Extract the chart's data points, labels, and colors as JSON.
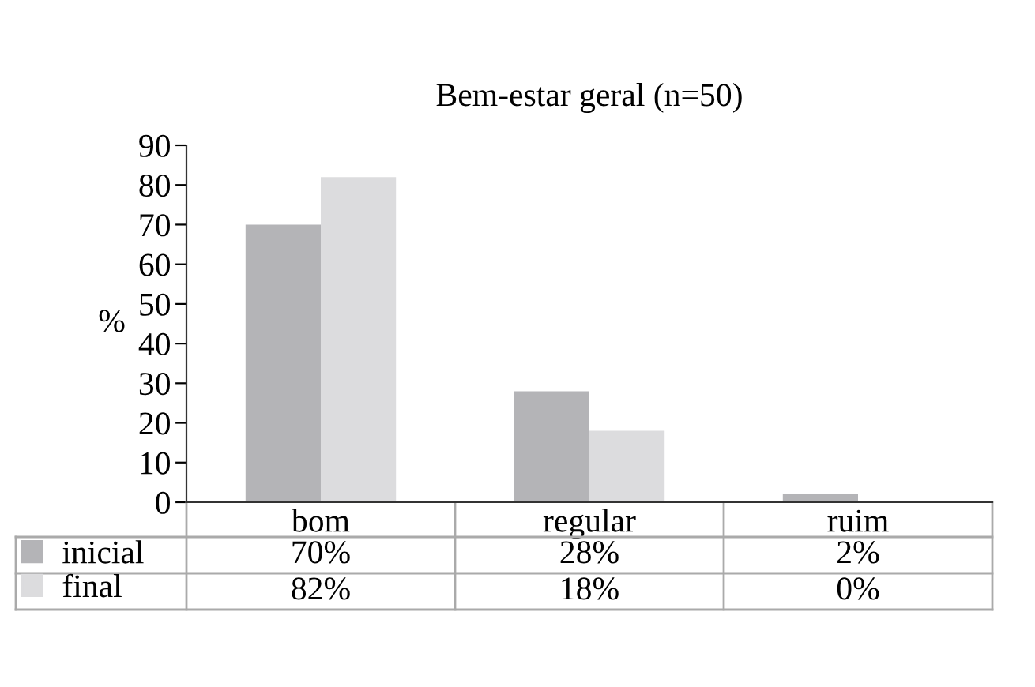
{
  "chart_data": {
    "type": "bar",
    "title": "Bem-estar geral (n=50)",
    "ylabel": "%",
    "categories": [
      "bom",
      "regular",
      "ruim"
    ],
    "series": [
      {
        "name": "inicial",
        "color": "#b4b4b7",
        "values": [
          70,
          28,
          2
        ],
        "value_labels": [
          "70%",
          "28%",
          "2%"
        ]
      },
      {
        "name": "final",
        "color": "#dcdcde",
        "values": [
          82,
          18,
          0
        ],
        "value_labels": [
          "82%",
          "18%",
          "0%"
        ]
      }
    ],
    "ylim": [
      0,
      90
    ],
    "yticks": [
      0,
      10,
      20,
      30,
      40,
      50,
      60,
      70,
      80,
      90
    ],
    "grid": false,
    "legend": "bottom left"
  }
}
